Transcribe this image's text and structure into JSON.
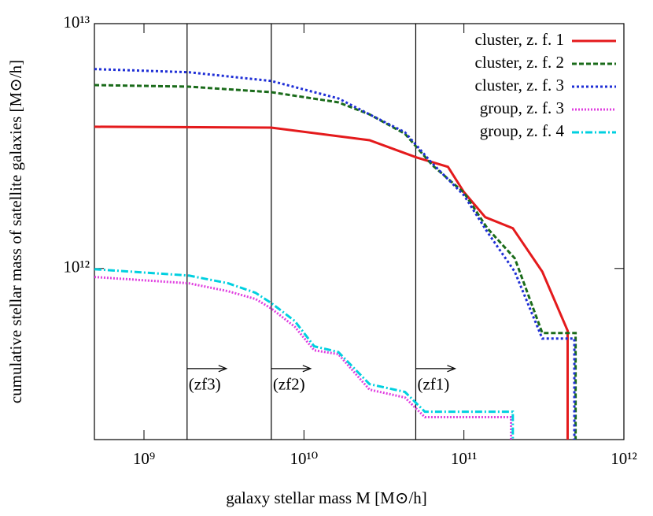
{
  "chart_data": {
    "type": "line",
    "xlabel": "galaxy stellar mass M [M⊙/h]",
    "ylabel": "cumulative stellar mass of satellite galaxies [M⊙/h]",
    "xscale": "log",
    "yscale": "log",
    "xlim": [
      490000000.0,
      1000000000000.0
    ],
    "ylim": [
      200000000000.0,
      10000000000000.0
    ],
    "xticks": [
      {
        "value": 1000000000.0,
        "label": "10⁹"
      },
      {
        "value": 10000000000.0,
        "label": "10¹⁰"
      },
      {
        "value": 100000000000.0,
        "label": "10¹¹"
      },
      {
        "value": 1000000000000.0,
        "label": "10¹²"
      }
    ],
    "yticks": [
      {
        "value": 1000000000000.0,
        "label": "10¹²"
      },
      {
        "value": 10000000000000.0,
        "label": "10¹³"
      }
    ],
    "legend": "upper right",
    "vlines": [
      1860000000.0,
      6250000000.0,
      50000000000.0
    ],
    "annotations": [
      {
        "text": "(zf3)",
        "x": 1860000000.0,
        "y": 390000000000.0
      },
      {
        "text": "(zf2)",
        "x": 6250000000.0,
        "y": 390000000000.0
      },
      {
        "text": "(zf1)",
        "x": 50000000000.0,
        "y": 390000000000.0
      }
    ],
    "series": [
      {
        "name": "cluster, z. f. 1",
        "color": "#e41a1c",
        "dash": "none",
        "x": [
          490000000.0,
          6250000000.0,
          25700000000.0,
          50700000000.0,
          79500000000.0,
          100000000000.0,
          136000000000.0,
          202000000000.0,
          309000000000.0,
          445000000000.0,
          445000000000.0
        ],
        "values": [
          3790000000000.0,
          3760000000000.0,
          3340000000000.0,
          2840000000000.0,
          2600000000000.0,
          2050000000000.0,
          1620000000000.0,
          1460000000000.0,
          970000000000.0,
          557000000000.0,
          200000000000.0
        ]
      },
      {
        "name": "cluster, z. f. 2",
        "color": "#1a6b1a",
        "dash": "6,3",
        "x": [
          490000000.0,
          1910000000.0,
          6250000000.0,
          16400000000.0,
          25700000000.0,
          42800000000.0,
          63600000000.0,
          100000000000.0,
          140000000000.0,
          208000000000.0,
          309000000000.0,
          499000000000.0,
          499000000000.0
        ],
        "values": [
          5610000000000.0,
          5530000000000.0,
          5250000000000.0,
          4770000000000.0,
          4260000000000.0,
          3550000000000.0,
          2640000000000.0,
          2040000000000.0,
          1460000000000.0,
          1100000000000.0,
          545000000000.0,
          545000000000.0,
          200000000000.0
        ]
      },
      {
        "name": "cluster, z. f. 3",
        "color": "#1f2fd6",
        "dash": "3,3",
        "x": [
          490000000.0,
          1910000000.0,
          6250000000.0,
          16400000000.0,
          25700000000.0,
          42800000000.0,
          63600000000.0,
          100000000000.0,
          140000000000.0,
          208000000000.0,
          309000000000.0,
          490000000000.0,
          490000000000.0
        ],
        "values": [
          6520000000000.0,
          6330000000000.0,
          5830000000000.0,
          4950000000000.0,
          4260000000000.0,
          3600000000000.0,
          2680000000000.0,
          1990000000000.0,
          1410000000000.0,
          970000000000.0,
          517000000000.0,
          517000000000.0,
          200000000000.0
        ]
      },
      {
        "name": "group, z. f. 3",
        "color": "#e040e0",
        "dash": "2,2",
        "x": [
          490000000.0,
          1910000000.0,
          3360000000.0,
          4990000000.0,
          6250000000.0,
          8770000000.0,
          11600000000.0,
          16400000000.0,
          25700000000.0,
          42800000000.0,
          57000000000.0,
          197000000000.0,
          197000000000.0
        ],
        "values": [
          923000000000.0,
          870000000000.0,
          807000000000.0,
          750000000000.0,
          686000000000.0,
          578000000000.0,
          463000000000.0,
          447000000000.0,
          320000000000.0,
          297000000000.0,
          247000000000.0,
          247000000000.0,
          200000000000.0
        ]
      },
      {
        "name": "group, z. f. 4",
        "color": "#00d0e0",
        "dash": "9,3,2,3",
        "x": [
          490000000.0,
          1910000000.0,
          3360000000.0,
          4990000000.0,
          6250000000.0,
          8770000000.0,
          11600000000.0,
          16400000000.0,
          25700000000.0,
          42800000000.0,
          57000000000.0,
          202000000000.0,
          202000000000.0
        ],
        "values": [
          993000000000.0,
          935000000000.0,
          870000000000.0,
          795000000000.0,
          722000000000.0,
          610000000000.0,
          481000000000.0,
          456000000000.0,
          337000000000.0,
          313000000000.0,
          260000000000.0,
          260000000000.0,
          200000000000.0
        ]
      }
    ]
  }
}
